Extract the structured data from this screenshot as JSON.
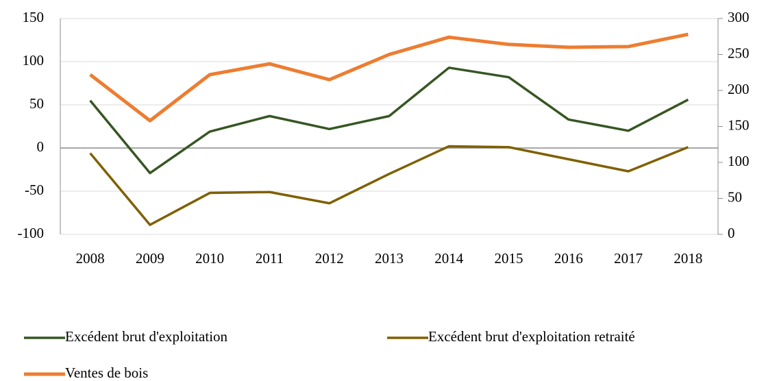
{
  "chart_data": {
    "type": "line",
    "categories": [
      "2008",
      "2009",
      "2010",
      "2011",
      "2012",
      "2013",
      "2014",
      "2015",
      "2016",
      "2017",
      "2018"
    ],
    "series": [
      {
        "name": "Excédent brut d'exploitation",
        "color": "#375623",
        "axis": "y",
        "values": [
          55,
          -29,
          19,
          37,
          22,
          37,
          93,
          82,
          33,
          20,
          56
        ]
      },
      {
        "name": "Excédent brut d'exploitation retraité",
        "color": "#7f6000",
        "axis": "y",
        "values": [
          -6,
          -89,
          -52,
          -51,
          -64,
          -30,
          2,
          1,
          -13,
          -27,
          1
        ]
      },
      {
        "name": "Ventes de bois",
        "color": "#ed7d31",
        "axis": "y2",
        "values": [
          222,
          158,
          222,
          237,
          215,
          250,
          274,
          264,
          260,
          261,
          278
        ]
      }
    ],
    "ylim": [
      -100,
      150
    ],
    "yticks": [
      -100,
      -50,
      0,
      50,
      100,
      150
    ],
    "y2lim": [
      0,
      300
    ],
    "y2ticks": [
      0,
      50,
      100,
      150,
      200,
      250,
      300
    ],
    "grid": true,
    "legend": "bottom"
  }
}
